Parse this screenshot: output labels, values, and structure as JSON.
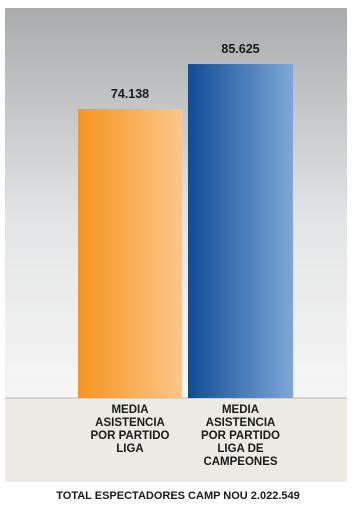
{
  "chart_data": {
    "type": "bar",
    "categories": [
      "MEDIA ASISTENCIA POR PARTIDO LIGA",
      "MEDIA ASISTENCIA POR PARTIDO LIGA DE CAMPEONES"
    ],
    "category_lines": [
      [
        "MEDIA",
        "ASISTENCIA",
        "POR PARTIDO",
        "LIGA"
      ],
      [
        "MEDIA",
        "ASISTENCIA",
        "POR PARTIDO",
        "LIGA DE",
        "CAMPEONES"
      ]
    ],
    "values": [
      74138,
      85625
    ],
    "value_labels": [
      "74.138",
      "85.625"
    ],
    "ylim": [
      0,
      100000
    ],
    "grid": false,
    "legend": "none",
    "colors": {
      "bar_1_start": "#f7941e",
      "bar_1_end": "#fcc68a",
      "bar_2_start": "#0f4c97",
      "bar_2_end": "#7ea7d8"
    },
    "footer": "TOTAL ESPECTADORES CAMP NOU 2.022.549"
  }
}
